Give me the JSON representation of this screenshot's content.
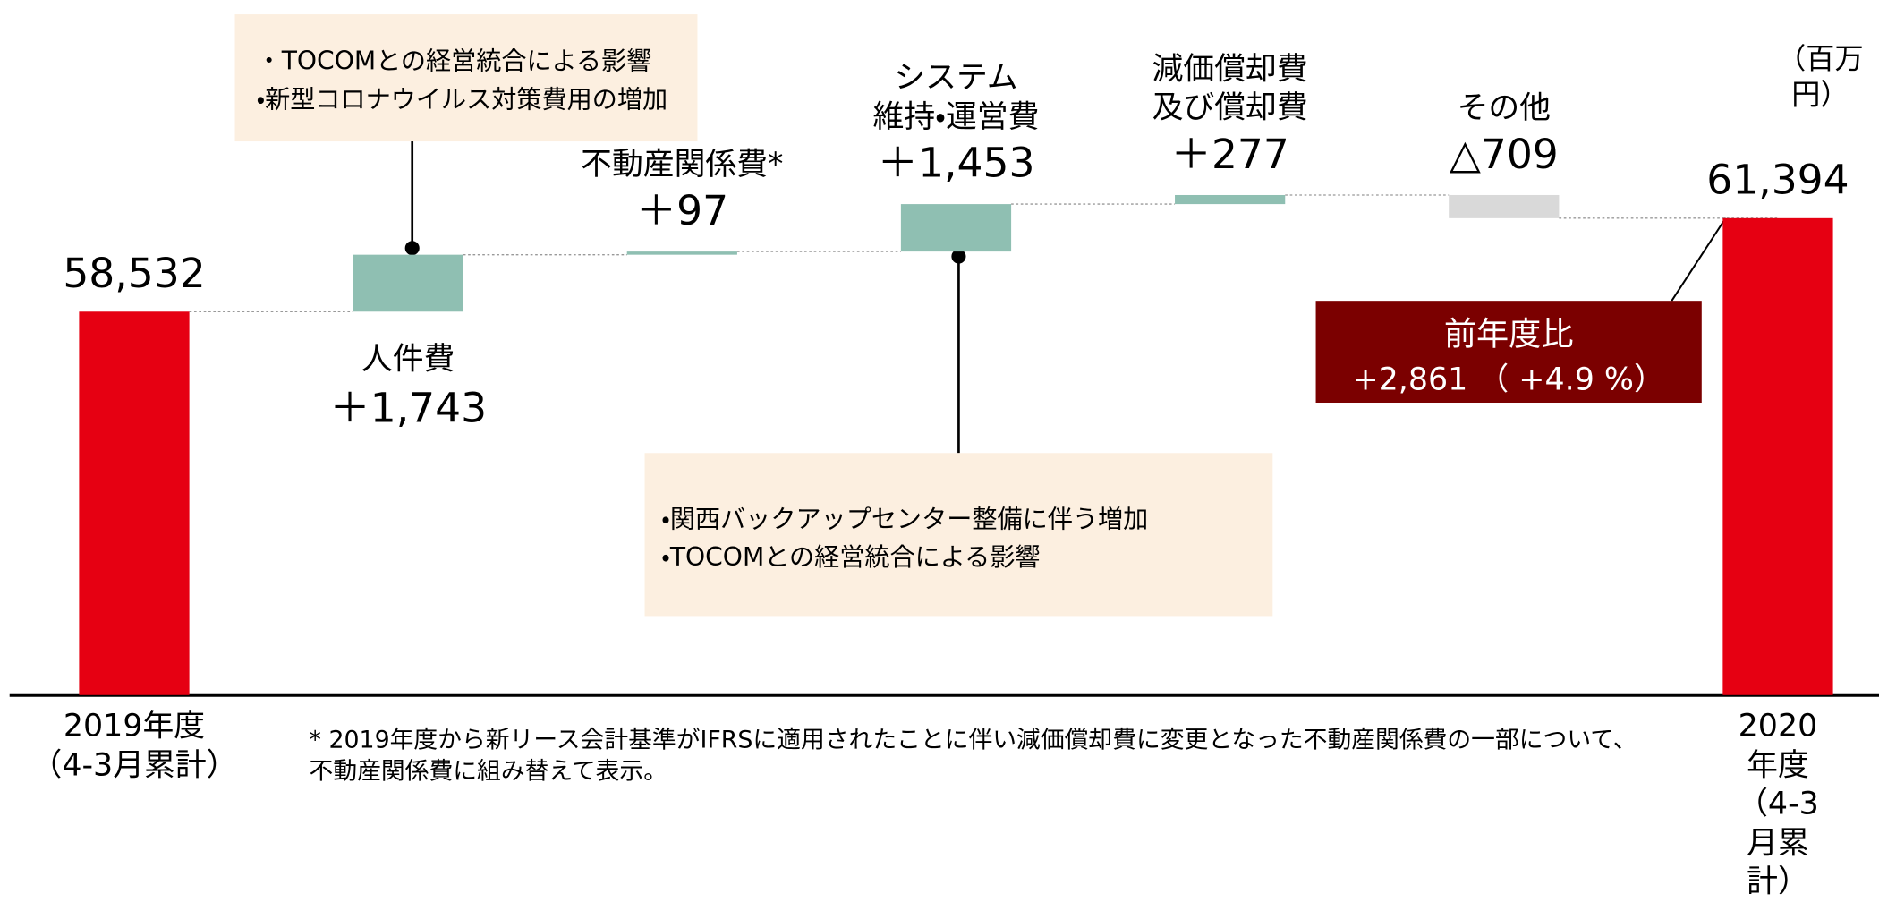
{
  "chart_data": {
    "type": "waterfall",
    "categories": [
      "2019年度\n（4-3月累計）",
      "人件費",
      "不動産関係費*",
      "システム\n維持・運営費",
      "減価償却費\n及び償却費",
      "その他",
      "2020年度\n（4-3月累計）"
    ],
    "values": [
      58532,
      1743,
      97,
      1453,
      277,
      -709,
      61394
    ],
    "value_labels": [
      "58,532",
      "＋1,743",
      "＋97",
      "＋1,453",
      "＋277",
      "△709",
      "61,394"
    ],
    "colors": {
      "total": "#e60012",
      "increase": "#8fbfb2",
      "decrease": "#d9d9d9"
    },
    "ylim": [
      46790,
      68075
    ],
    "unit": "（百万円）",
    "annotations": [
      "・TOCOMとの経営統合による影響\n・新型コロナウイルス対策費用の増加",
      "・関西バックアップセンター整備に伴う増加\n・TOCOMとの経営統合による影響"
    ],
    "comparison": {
      "title": "前年度比",
      "text": "+2,861 （ +4.9 %）"
    },
    "footnote": "* 2019年度から新リース会計基準がIFRSに適用されたことに伴い減価償却費に変更となった不動産関係費の一部について、\n   不動産関係費に組み替えて表示。"
  }
}
